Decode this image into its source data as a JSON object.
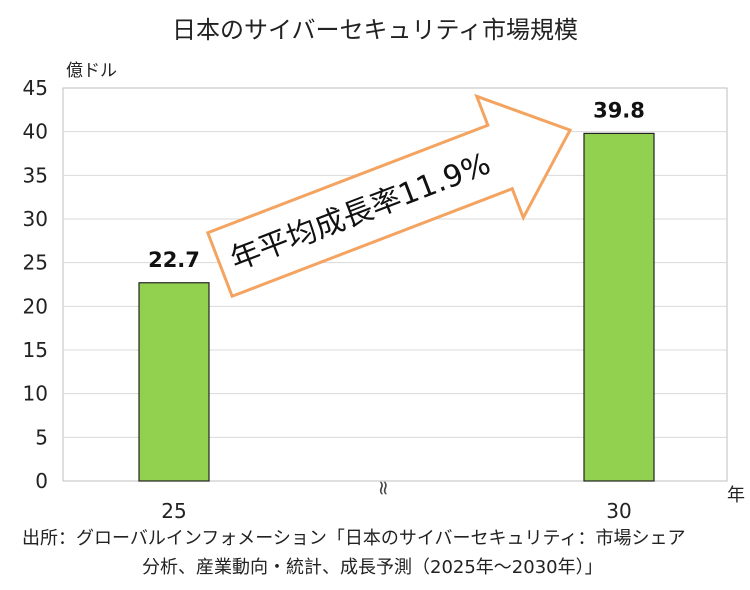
{
  "chart_data": {
    "type": "bar",
    "title": "日本のサイバーセキュリティ市場規模",
    "ylabel": "億ドル",
    "xlabel": "年",
    "categories": [
      "25",
      "30"
    ],
    "values": [
      22.7,
      39.8
    ],
    "value_labels": [
      "22.7",
      "39.8"
    ],
    "ylim": [
      0,
      45
    ],
    "yticks": [
      0,
      5,
      10,
      15,
      20,
      25,
      30,
      35,
      40,
      45
    ],
    "grid": true,
    "bar_color": "#92d050",
    "axis_break_symbol": "≈",
    "annotation": {
      "text": "年平均成長率11.9%",
      "arrow_fill": "#ffffff",
      "arrow_stroke": "#f4a460"
    }
  },
  "source": {
    "line1": "出所：グローバルインフォメーション「日本のサイバーセキュリティ：市場シェア",
    "line2": "分析、産業動向・統計、成長予測（2025年～2030年）」"
  }
}
